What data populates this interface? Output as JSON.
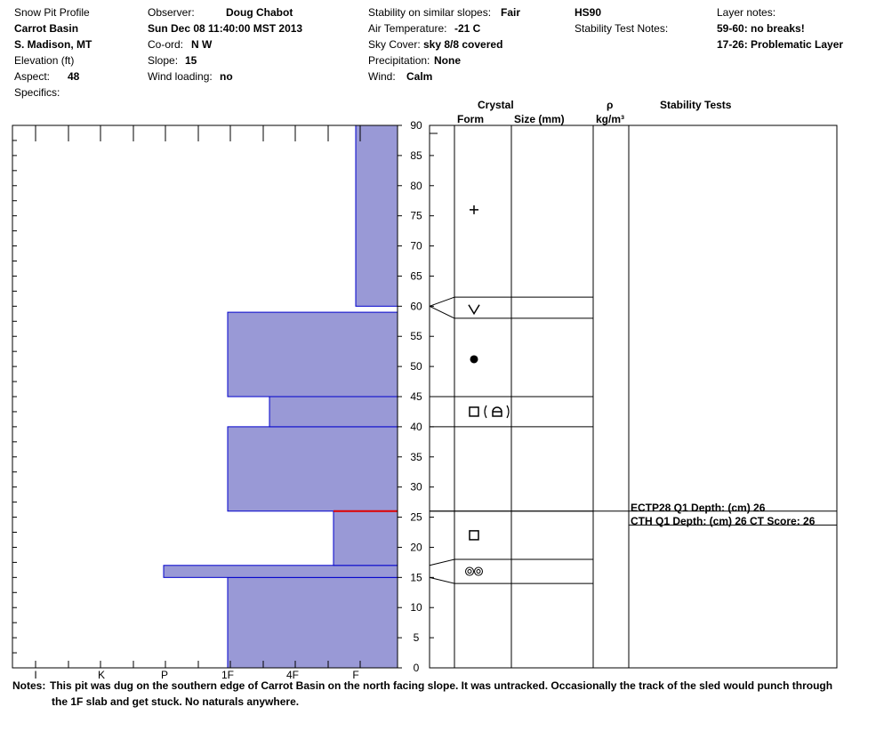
{
  "header": {
    "title": "Snow Pit Profile",
    "location": "Carrot Basin",
    "region": "S. Madison, MT",
    "elevation_label": "Elevation (ft)",
    "aspect_label": "Aspect:",
    "aspect_value": "48",
    "specifics_label": "Specifics:",
    "observer_label": "Observer:",
    "observer_value": "Doug Chabot",
    "datetime": "Sun Dec 08 11:40:00 MST 2013",
    "coord_label": "Co-ord:",
    "coord_value": "N  W",
    "slope_label": "Slope:",
    "slope_value": "15",
    "wind_loading_label": "Wind loading:",
    "wind_loading_value": "no",
    "stability_label": "Stability on similar slopes:",
    "stability_value": "Fair",
    "air_temp_label": "Air Temperature:",
    "air_temp_value": "-21 C",
    "sky_label": "Sky Cover:",
    "sky_value": "sky 8/8 covered",
    "precip_label": "Precipitation:",
    "precip_value": "None",
    "wind_label": "Wind:",
    "wind_value": "Calm",
    "hs": "HS90",
    "stability_test_notes_label": "Stability Test Notes:",
    "layer_notes_label": "Layer notes:",
    "layer_note_1": "59-60: no breaks!",
    "layer_note_2": "17-26: Problematic Layer"
  },
  "columns": {
    "crystal": "Crystal",
    "form": "Form",
    "size": "Size (mm)",
    "rho": "ρ",
    "density_unit": "kg/m³",
    "stability_tests": "Stability Tests"
  },
  "stability_tests": {
    "test_1": "ECTP28 Q1 Depth: (cm) 26",
    "test_2": "CTH Q1 Depth: (cm) 26 CT Score: 26"
  },
  "notes": {
    "label": "Notes:",
    "line_1": "This pit was dug on the southern edge of Carrot Basin on the north facing slope.  It was untracked.  Occasionally the track of the sled would punch through",
    "line_2": "the 1F slab and get stuck. No naturals anywhere."
  },
  "chart_data": {
    "type": "bar",
    "title": "Snow Pit Profile",
    "y_axis": {
      "range": [
        0,
        90
      ],
      "ticks": [
        0,
        5,
        10,
        15,
        20,
        25,
        30,
        35,
        40,
        45,
        50,
        55,
        60,
        65,
        70,
        75,
        80,
        85,
        90
      ]
    },
    "hardness_scale": [
      "I",
      "K",
      "P",
      "1F",
      "4F",
      "F"
    ],
    "hardness_layers": [
      {
        "bottom": 0,
        "top": 15,
        "hardness": "1F"
      },
      {
        "bottom": 15,
        "top": 17,
        "hardness": "P+"
      },
      {
        "bottom": 17,
        "top": 26,
        "hardness": "4F-"
      },
      {
        "bottom": 26,
        "top": 40,
        "hardness": "1F"
      },
      {
        "bottom": 40,
        "top": 45,
        "hardness": "1F-"
      },
      {
        "bottom": 45,
        "top": 59,
        "hardness": "1F"
      },
      {
        "bottom": 60,
        "top": 90,
        "hardness": "F"
      }
    ],
    "problem_layer_depth": 26,
    "crystal_layers": [
      {
        "bottom": 14,
        "top": 18,
        "form": "melt-freeze-icon"
      },
      {
        "bottom": 18,
        "top": 26,
        "form": "faceted-icon"
      },
      {
        "bottom": 40,
        "top": 45,
        "form": "faceted-rounding-icon"
      },
      {
        "bottom": 45,
        "top": 58,
        "form": "rounded-grains-icon"
      },
      {
        "bottom": 58,
        "top": 62,
        "form": "surface-hoar-icon"
      },
      {
        "bottom": 62,
        "top": 90,
        "form": "new-snow-icon"
      }
    ],
    "colors": {
      "fill": "#9999d6",
      "outline": "#0000cc",
      "problem": "#e00000"
    }
  }
}
